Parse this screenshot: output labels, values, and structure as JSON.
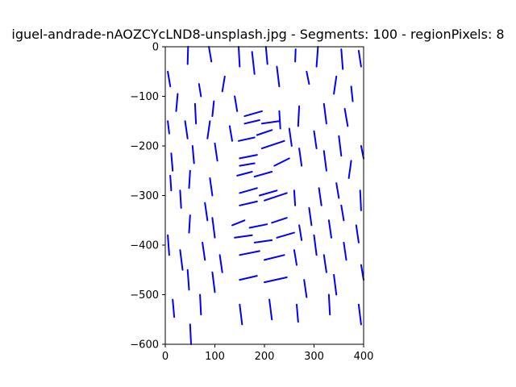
{
  "chart_data": {
    "type": "line",
    "title": "iguel-andrade-nAOZCYcLND8-unsplash.jpg - Segments: 100 - regionPixels: 8",
    "xlabel": "",
    "ylabel": "",
    "xlim": [
      0,
      400
    ],
    "ylim": [
      -600,
      0
    ],
    "xticks": [
      0,
      100,
      200,
      300,
      400
    ],
    "yticks": [
      0,
      -100,
      -200,
      -300,
      -400,
      -500,
      -600
    ],
    "xtick_labels": [
      "0",
      "100",
      "200",
      "300",
      "400"
    ],
    "ytick_labels": [
      "0",
      "−100",
      "−200",
      "−300",
      "−400",
      "−500",
      "−600"
    ],
    "grid": false,
    "series_color": "#0000ff",
    "segments": [
      [
        [
          46,
          0
        ],
        [
          45,
          -35
        ]
      ],
      [
        [
          88,
          0
        ],
        [
          93,
          -30
        ]
      ],
      [
        [
          148,
          0
        ],
        [
          150,
          -40
        ]
      ],
      [
        [
          203,
          0
        ],
        [
          206,
          -35
        ]
      ],
      [
        [
          263,
          -5
        ],
        [
          262,
          -30
        ]
      ],
      [
        [
          308,
          0
        ],
        [
          305,
          -40
        ]
      ],
      [
        [
          355,
          -5
        ],
        [
          358,
          -45
        ]
      ],
      [
        [
          390,
          -8
        ],
        [
          395,
          -40
        ]
      ],
      [
        [
          5,
          -50
        ],
        [
          10,
          -80
        ]
      ],
      [
        [
          68,
          -75
        ],
        [
          72,
          -100
        ]
      ],
      [
        [
          120,
          -60
        ],
        [
          115,
          -90
        ]
      ],
      [
        [
          175,
          -10
        ],
        [
          180,
          -55
        ]
      ],
      [
        [
          225,
          -40
        ],
        [
          230,
          -80
        ]
      ],
      [
        [
          285,
          -50
        ],
        [
          290,
          -75
        ]
      ],
      [
        [
          345,
          -60
        ],
        [
          340,
          -95
        ]
      ],
      [
        [
          375,
          -80
        ],
        [
          378,
          -110
        ]
      ],
      [
        [
          25,
          -95
        ],
        [
          22,
          -130
        ]
      ],
      [
        [
          60,
          -115
        ],
        [
          62,
          -155
        ]
      ],
      [
        [
          98,
          -110
        ],
        [
          95,
          -140
        ]
      ],
      [
        [
          140,
          -100
        ],
        [
          145,
          -130
        ]
      ],
      [
        [
          160,
          -140
        ],
        [
          195,
          -130
        ]
      ],
      [
        [
          160,
          -155
        ],
        [
          190,
          -148
        ]
      ],
      [
        [
          195,
          -155
        ],
        [
          230,
          -150
        ]
      ],
      [
        [
          230,
          -130
        ],
        [
          232,
          -165
        ]
      ],
      [
        [
          270,
          -120
        ],
        [
          268,
          -160
        ]
      ],
      [
        [
          320,
          -115
        ],
        [
          325,
          -155
        ]
      ],
      [
        [
          362,
          -125
        ],
        [
          368,
          -160
        ]
      ],
      [
        [
          5,
          -150
        ],
        [
          8,
          -175
        ]
      ],
      [
        [
          40,
          -150
        ],
        [
          45,
          -185
        ]
      ],
      [
        [
          90,
          -150
        ],
        [
          85,
          -185
        ]
      ],
      [
        [
          130,
          -160
        ],
        [
          135,
          -190
        ]
      ],
      [
        [
          148,
          -190
        ],
        [
          180,
          -183
        ]
      ],
      [
        [
          185,
          -178
        ],
        [
          215,
          -168
        ]
      ],
      [
        [
          250,
          -165
        ],
        [
          255,
          -200
        ]
      ],
      [
        [
          300,
          -170
        ],
        [
          305,
          -205
        ]
      ],
      [
        [
          350,
          -180
        ],
        [
          355,
          -220
        ]
      ],
      [
        [
          395,
          -200
        ],
        [
          400,
          -225
        ]
      ],
      [
        [
          12,
          -215
        ],
        [
          15,
          -250
        ]
      ],
      [
        [
          55,
          -200
        ],
        [
          58,
          -235
        ]
      ],
      [
        [
          100,
          -195
        ],
        [
          105,
          -230
        ]
      ],
      [
        [
          150,
          -225
        ],
        [
          185,
          -218
        ]
      ],
      [
        [
          195,
          -205
        ],
        [
          240,
          -190
        ]
      ],
      [
        [
          270,
          -205
        ],
        [
          275,
          -240
        ]
      ],
      [
        [
          320,
          -210
        ],
        [
          325,
          -250
        ]
      ],
      [
        [
          375,
          -230
        ],
        [
          370,
          -265
        ]
      ],
      [
        [
          10,
          -260
        ],
        [
          12,
          -290
        ]
      ],
      [
        [
          50,
          -250
        ],
        [
          48,
          -285
        ]
      ],
      [
        [
          90,
          -265
        ],
        [
          95,
          -300
        ]
      ],
      [
        [
          150,
          -240
        ],
        [
          180,
          -235
        ]
      ],
      [
        [
          145,
          -260
        ],
        [
          175,
          -252
        ]
      ],
      [
        [
          180,
          -262
        ],
        [
          215,
          -252
        ]
      ],
      [
        [
          220,
          -240
        ],
        [
          250,
          -225
        ]
      ],
      [
        [
          150,
          -295
        ],
        [
          185,
          -285
        ]
      ],
      [
        [
          190,
          -300
        ],
        [
          225,
          -290
        ]
      ],
      [
        [
          260,
          -290
        ],
        [
          262,
          -320
        ]
      ],
      [
        [
          310,
          -285
        ],
        [
          315,
          -320
        ]
      ],
      [
        [
          345,
          -275
        ],
        [
          350,
          -305
        ]
      ],
      [
        [
          393,
          -290
        ],
        [
          395,
          -330
        ]
      ],
      [
        [
          30,
          -290
        ],
        [
          32,
          -325
        ]
      ],
      [
        [
          80,
          -315
        ],
        [
          85,
          -350
        ]
      ],
      [
        [
          150,
          -320
        ],
        [
          185,
          -312
        ]
      ],
      [
        [
          200,
          -310
        ],
        [
          245,
          -295
        ]
      ],
      [
        [
          290,
          -325
        ],
        [
          295,
          -360
        ]
      ],
      [
        [
          355,
          -320
        ],
        [
          360,
          -350
        ]
      ],
      [
        [
          50,
          -340
        ],
        [
          48,
          -375
        ]
      ],
      [
        [
          95,
          -345
        ],
        [
          100,
          -385
        ]
      ],
      [
        [
          135,
          -360
        ],
        [
          160,
          -350
        ]
      ],
      [
        [
          170,
          -365
        ],
        [
          205,
          -358
        ]
      ],
      [
        [
          215,
          -355
        ],
        [
          245,
          -345
        ]
      ],
      [
        [
          270,
          -360
        ],
        [
          275,
          -390
        ]
      ],
      [
        [
          330,
          -350
        ],
        [
          335,
          -385
        ]
      ],
      [
        [
          385,
          -360
        ],
        [
          390,
          -395
        ]
      ],
      [
        [
          5,
          -380
        ],
        [
          8,
          -420
        ]
      ],
      [
        [
          75,
          -395
        ],
        [
          80,
          -430
        ]
      ],
      [
        [
          140,
          -385
        ],
        [
          175,
          -380
        ]
      ],
      [
        [
          180,
          -395
        ],
        [
          215,
          -390
        ]
      ],
      [
        [
          225,
          -385
        ],
        [
          260,
          -375
        ]
      ],
      [
        [
          300,
          -380
        ],
        [
          305,
          -420
        ]
      ],
      [
        [
          360,
          -395
        ],
        [
          365,
          -430
        ]
      ],
      [
        [
          30,
          -410
        ],
        [
          35,
          -450
        ]
      ],
      [
        [
          110,
          -420
        ],
        [
          115,
          -455
        ]
      ],
      [
        [
          150,
          -420
        ],
        [
          190,
          -412
        ]
      ],
      [
        [
          200,
          -430
        ],
        [
          240,
          -420
        ]
      ],
      [
        [
          260,
          -410
        ],
        [
          265,
          -440
        ]
      ],
      [
        [
          320,
          -420
        ],
        [
          325,
          -455
        ]
      ],
      [
        [
          395,
          -440
        ],
        [
          400,
          -470
        ]
      ],
      [
        [
          45,
          -450
        ],
        [
          48,
          -490
        ]
      ],
      [
        [
          95,
          -455
        ],
        [
          100,
          -495
        ]
      ],
      [
        [
          150,
          -470
        ],
        [
          185,
          -462
        ]
      ],
      [
        [
          200,
          -475
        ],
        [
          245,
          -465
        ]
      ],
      [
        [
          280,
          -470
        ],
        [
          285,
          -505
        ]
      ],
      [
        [
          340,
          -460
        ],
        [
          345,
          -500
        ]
      ],
      [
        [
          15,
          -510
        ],
        [
          18,
          -545
        ]
      ],
      [
        [
          70,
          -500
        ],
        [
          72,
          -540
        ]
      ],
      [
        [
          150,
          -520
        ],
        [
          155,
          -560
        ]
      ],
      [
        [
          210,
          -510
        ],
        [
          215,
          -550
        ]
      ],
      [
        [
          265,
          -520
        ],
        [
          268,
          -555
        ]
      ],
      [
        [
          330,
          -500
        ],
        [
          332,
          -540
        ]
      ],
      [
        [
          390,
          -520
        ],
        [
          395,
          -560
        ]
      ],
      [
        [
          50,
          -560
        ],
        [
          52,
          -600
        ]
      ]
    ]
  }
}
